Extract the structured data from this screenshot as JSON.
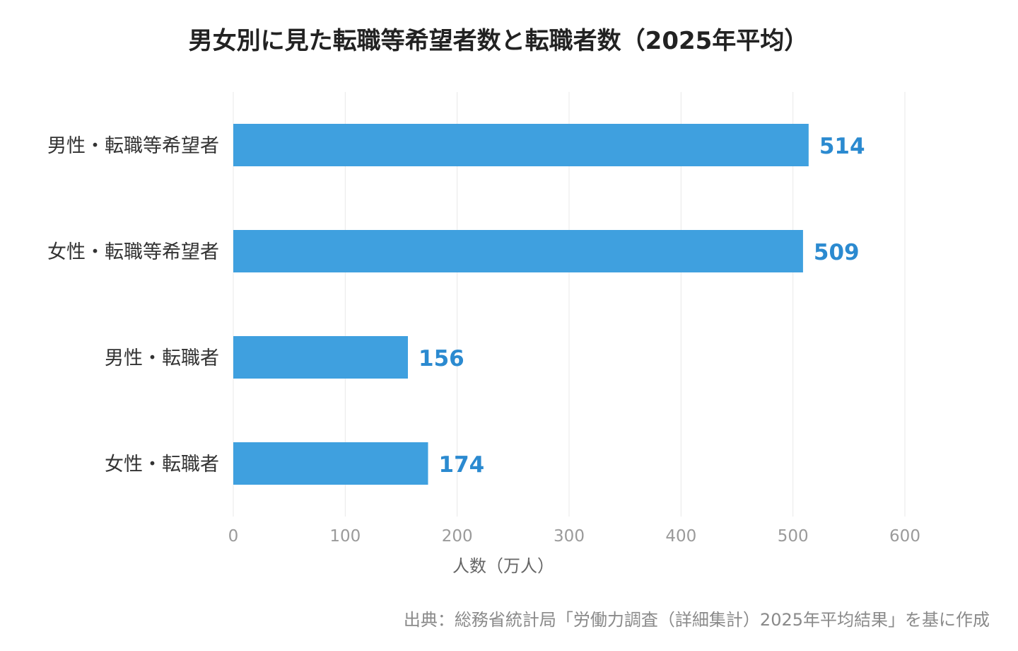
{
  "chart_data": {
    "type": "bar",
    "orientation": "horizontal",
    "title": "男女別に見た転職等希望者数と転職者数（2025年平均）",
    "categories": [
      "男性・転職等希望者",
      "女性・転職等希望者",
      "男性・転職者",
      "女性・転職者"
    ],
    "values": [
      514,
      509,
      156,
      174
    ],
    "xlabel": "人数（万人）",
    "ylabel": "",
    "xlim": [
      0,
      600
    ],
    "xticks": [
      "0",
      "100",
      "200",
      "300",
      "400",
      "500",
      "600"
    ],
    "grid": "vertical",
    "legend": "none",
    "data_labels": [
      "514",
      "509",
      "156",
      "174"
    ],
    "colors": {
      "bar": "#3fa0df",
      "value_label": "#2b8ad0",
      "grid": "#e8e8e8",
      "tick_label": "#9a9a9a",
      "category_label": "#333333",
      "axis_title": "#666666"
    }
  },
  "source": "出典：総務省統計局「労働力調査（詳細集計）2025年平均結果」を基に作成"
}
